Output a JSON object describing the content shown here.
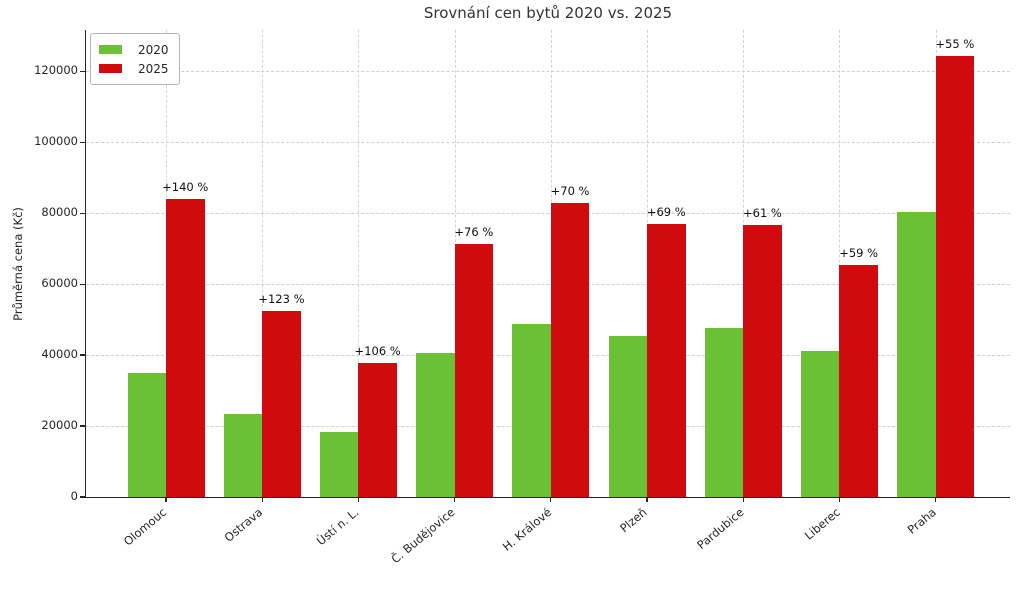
{
  "chart_data": {
    "type": "bar",
    "title": "Srovnání cen bytů 2020 vs. 2025",
    "ylabel": "Průměrná cena (Kč)",
    "xlabel": "",
    "categories": [
      "Olomouc",
      "Ostrava",
      "Ústí n. L.",
      "Č. Budějovice",
      "H. Králové",
      "Plzeň",
      "Pardubice",
      "Liberec",
      "Praha"
    ],
    "series": [
      {
        "name": "2020",
        "color": "#6bc135",
        "values": [
          35000,
          23500,
          18300,
          40500,
          48800,
          45500,
          47600,
          41200,
          80300
        ]
      },
      {
        "name": "2025",
        "color": "#d00b0d",
        "values": [
          84000,
          52400,
          37700,
          71300,
          83000,
          76900,
          76600,
          65500,
          124500
        ]
      }
    ],
    "bar_labels": [
      "+140 %",
      "+123 %",
      "+106 %",
      "+76 %",
      "+70 %",
      "+69 %",
      "+61 %",
      "+59 %",
      "+55 %"
    ],
    "yticks": [
      0,
      20000,
      40000,
      60000,
      80000,
      100000,
      120000
    ],
    "ylim": [
      0,
      131700
    ],
    "grid": true,
    "legend_position": "upper left",
    "grid_color": "#cfcfcf",
    "axis_color": "#262626"
  }
}
